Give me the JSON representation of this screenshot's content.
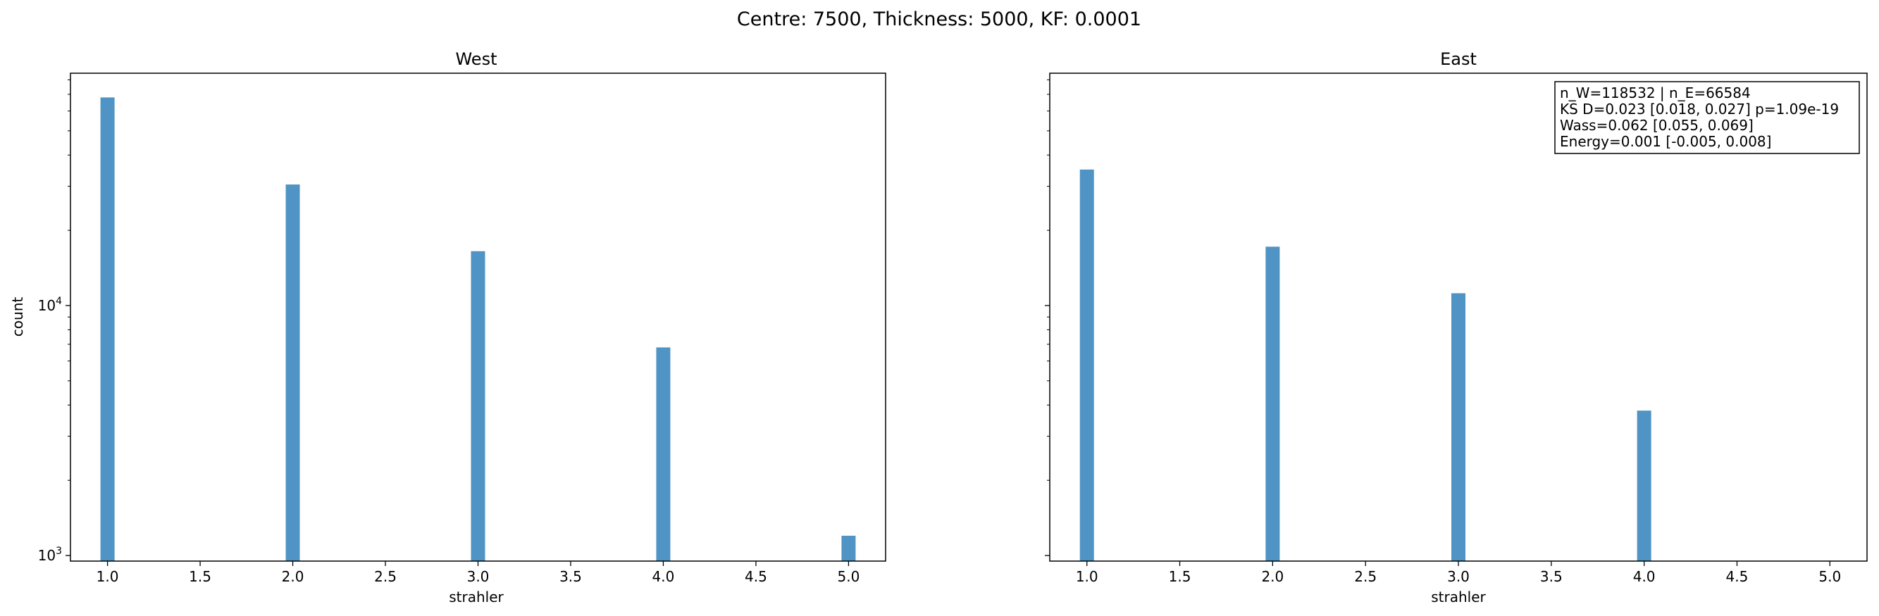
{
  "figure": {
    "suptitle": "Centre: 7500, Thickness: 5000, KF: 0.0001"
  },
  "colors": {
    "bar": "#4f94c4",
    "axis": "#000000"
  },
  "stats_box": {
    "lines": [
      "n_W=118532 | n_E=66584",
      "KS D=0.023 [0.018, 0.027]  p=1.09e-19",
      "Wass=0.062 [0.055, 0.069]",
      "Energy=0.001 [-0.005, 0.008]"
    ]
  },
  "chart_data": [
    {
      "type": "bar",
      "title": "West",
      "xlabel": "strahler",
      "ylabel": "count",
      "yscale": "log",
      "xlim": [
        0.8,
        5.2
      ],
      "ylim": [
        950,
        85000
      ],
      "xticks": [
        "1.0",
        "1.5",
        "2.0",
        "2.5",
        "3.0",
        "3.5",
        "4.0",
        "4.5",
        "5.0"
      ],
      "x": [
        1,
        2,
        3,
        4,
        5
      ],
      "values": [
        68000,
        30500,
        16500,
        6800,
        1200
      ]
    },
    {
      "type": "bar",
      "title": "East",
      "xlabel": "strahler",
      "ylabel": "",
      "yscale": "log",
      "xlim": [
        0.8,
        5.2
      ],
      "ylim": [
        950,
        85000
      ],
      "xticks": [
        "1.0",
        "1.5",
        "2.0",
        "2.5",
        "3.0",
        "3.5",
        "4.0",
        "4.5",
        "5.0"
      ],
      "x": [
        1,
        2,
        3,
        4
      ],
      "values": [
        35000,
        17200,
        11200,
        3800
      ]
    }
  ]
}
